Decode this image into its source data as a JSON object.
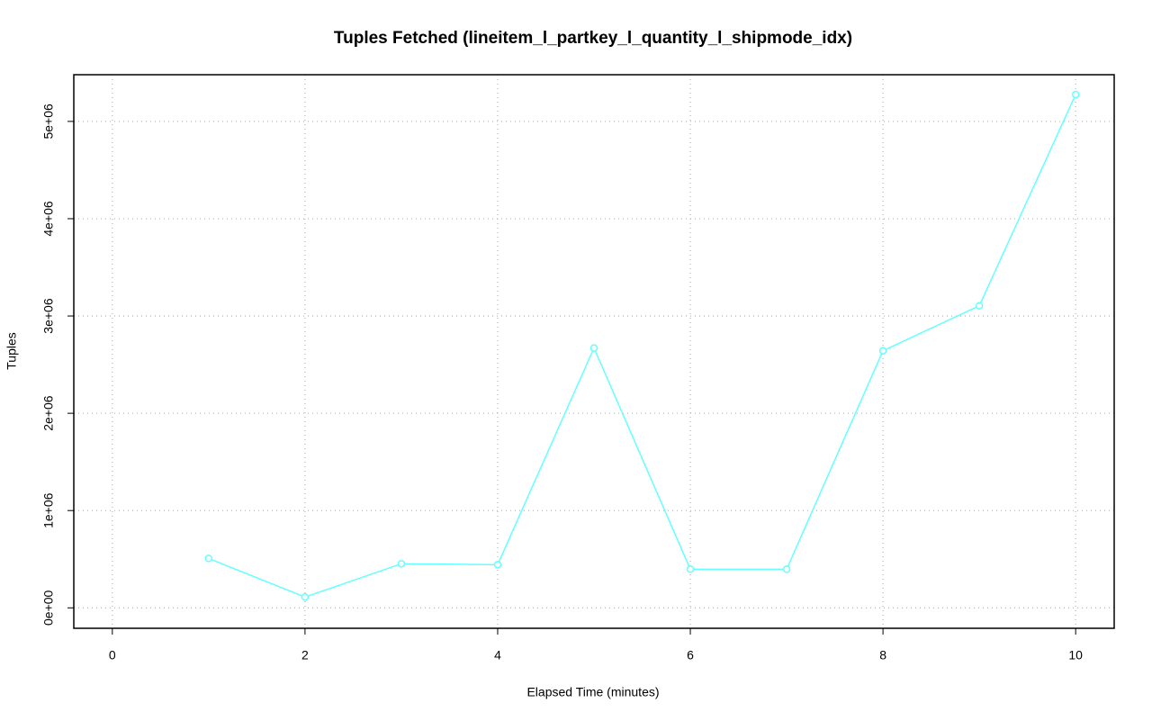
{
  "chart_data": {
    "type": "line",
    "title": "Tuples Fetched (lineitem_l_partkey_l_quantity_l_shipmode_idx)",
    "x_label": "Elapsed Time (minutes)",
    "y_label": "Tuples",
    "x": [
      1,
      2,
      3,
      4,
      5,
      6,
      7,
      8,
      9,
      10
    ],
    "series": [
      {
        "name": "Tuples",
        "color": "#66ffff",
        "values": [
          508000,
          111000,
          453000,
          444000,
          2671000,
          397000,
          397000,
          2643000,
          3105000,
          5277000
        ]
      }
    ],
    "xlim": [
      -0.4,
      10.4
    ],
    "xticks": [
      0,
      2,
      4,
      6,
      8,
      10
    ],
    "ylim": [
      -210000,
      5480000
    ],
    "yticks": [
      {
        "value": 0,
        "label": "0e+00"
      },
      {
        "value": 1000000,
        "label": "1e+06"
      },
      {
        "value": 2000000,
        "label": "2e+06"
      },
      {
        "value": 3000000,
        "label": "3e+06"
      },
      {
        "value": 4000000,
        "label": "4e+06"
      },
      {
        "value": 5000000,
        "label": "5e+06"
      }
    ],
    "grid": true
  }
}
